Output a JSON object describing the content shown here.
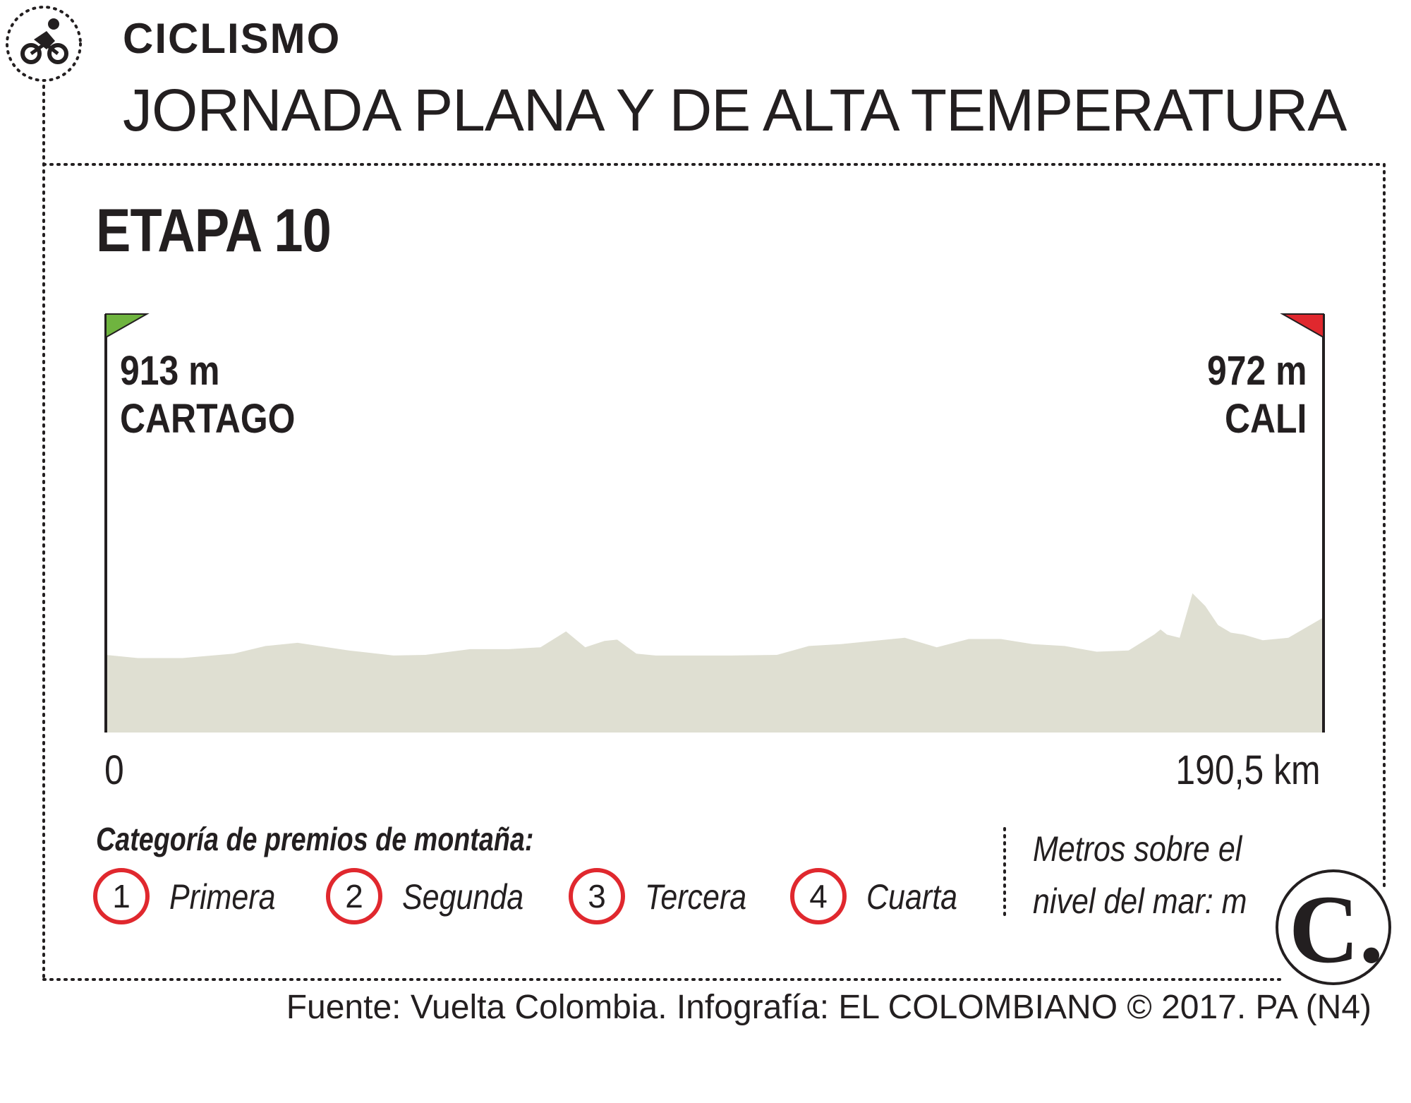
{
  "header": {
    "section": "CICLISMO",
    "headline": "JORNADA PLANA Y DE ALTA TEMPERATURA",
    "icon": "cyclist-icon"
  },
  "stage": {
    "title": "ETAPA 10"
  },
  "start": {
    "elevation": "913 m",
    "city": "CARTAGO",
    "flag_color": "#6fb43f"
  },
  "finish": {
    "elevation": "972 m",
    "city": "CALI",
    "flag_color": "#e0282e"
  },
  "chart_data": {
    "type": "area",
    "title": "ETAPA 10",
    "xlabel": "km",
    "ylabel": "Metros sobre el nivel del mar: m",
    "xlim": [
      0,
      190.5
    ],
    "x_tick_labels": [
      "0",
      "190,5 km"
    ],
    "fill_color": "#dfdfd2",
    "series": [
      {
        "name": "elevation profile",
        "x": [
          0,
          5,
          12,
          20,
          25,
          30,
          38,
          45,
          50,
          57,
          63,
          68,
          72,
          75,
          78,
          80,
          83,
          86,
          87,
          90,
          98,
          105,
          110,
          115,
          125,
          130,
          135,
          140,
          145,
          150,
          155,
          160,
          164,
          165,
          166,
          168,
          170,
          172,
          174,
          176,
          178,
          181,
          185,
          190.5
        ],
        "y": [
          913,
          908,
          908,
          915,
          927,
          932,
          920,
          912,
          913,
          922,
          922,
          925,
          950,
          925,
          935,
          937,
          915,
          912,
          912,
          912,
          912,
          913,
          927,
          930,
          940,
          925,
          938,
          938,
          930,
          927,
          918,
          920,
          945,
          953,
          945,
          940,
          1010,
          990,
          960,
          948,
          945,
          936,
          940,
          972
        ]
      }
    ]
  },
  "legend": {
    "title": "Categoría de premios de montaña:",
    "categories": [
      {
        "number": "1",
        "label": "Primera"
      },
      {
        "number": "2",
        "label": "Segunda"
      },
      {
        "number": "3",
        "label": "Tercera"
      },
      {
        "number": "4",
        "label": "Cuarta"
      }
    ],
    "circle_color": "#e0282e",
    "units_line1": "Metros sobre el",
    "units_line2": "nivel del mar: m"
  },
  "logo": {
    "letter": "C."
  },
  "source": "Fuente: Vuelta Colombia. Infografía: EL COLOMBIANO © 2017. PA (N4)"
}
